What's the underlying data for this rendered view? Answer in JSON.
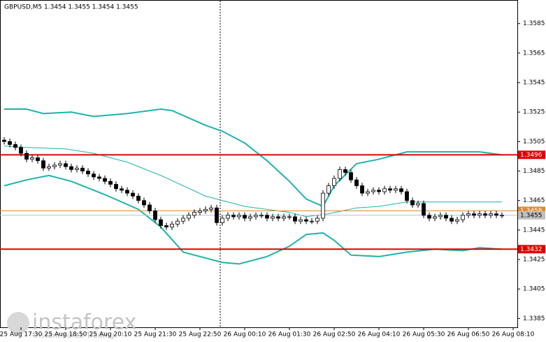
{
  "chart_data": {
    "type": "candlestick",
    "title": "GBPUSD,M5  1.3454 1.3455 1.3454 1.3455",
    "watermark": "instaforex",
    "watermark_subtitle": "Instant Forex Trading",
    "xlim": [
      -0.75,
      91.75
    ],
    "ylim": [
      1.3379,
      1.3601
    ],
    "yticks": [
      1.3585,
      1.3565,
      1.3545,
      1.3525,
      1.3505,
      1.3485,
      1.3465,
      1.3445,
      1.3425,
      1.3405,
      1.3385
    ],
    "xticks": [
      {
        "value": 3,
        "label": "25 Aug 17:30"
      },
      {
        "value": 11,
        "label": "25 Aug 18:50"
      },
      {
        "value": 19,
        "label": "25 Aug 20:10"
      },
      {
        "value": 27,
        "label": "25 Aug 21:30"
      },
      {
        "value": 35,
        "label": "25 Aug 22:50"
      },
      {
        "value": 43,
        "label": "26 Aug 00:10"
      },
      {
        "value": 51,
        "label": "26 Aug 01:30"
      },
      {
        "value": 59,
        "label": "26 Aug 02:50"
      },
      {
        "value": 67,
        "label": "26 Aug 04:10"
      },
      {
        "value": 75,
        "label": "26 Aug 05:30"
      },
      {
        "value": 83,
        "label": "26 Aug 06:50"
      },
      {
        "value": 91,
        "label": "26 Aug 08:10"
      }
    ],
    "candles": {
      "open": [
        1.3506,
        1.3505,
        1.3503,
        1.3501,
        1.3497,
        1.3493,
        1.3494,
        1.3492,
        1.3487,
        1.3488,
        1.3489,
        1.349,
        1.3488,
        1.3486,
        1.3487,
        1.3485,
        1.3483,
        1.3481,
        1.348,
        1.3478,
        1.3476,
        1.3473,
        1.3472,
        1.347,
        1.3468,
        1.3465,
        1.3462,
        1.3458,
        1.3452,
        1.3448,
        1.3447,
        1.3449,
        1.3451,
        1.3453,
        1.3455,
        1.3457,
        1.3458,
        1.3459,
        1.346,
        1.345,
        1.3453,
        1.3455,
        1.3454,
        1.3455,
        1.3453,
        1.3454,
        1.3455,
        1.3455,
        1.3453,
        1.3454,
        1.3453,
        1.3454,
        1.3454,
        1.3451,
        1.3452,
        1.3451,
        1.3451,
        1.3453,
        1.347,
        1.3475,
        1.348,
        1.3486,
        1.3484,
        1.3479,
        1.3475,
        1.347,
        1.3471,
        1.3472,
        1.3471,
        1.3473,
        1.3472,
        1.3473,
        1.3471,
        1.3465,
        1.3462,
        1.3463,
        1.3455,
        1.3453,
        1.3454,
        1.3455,
        1.3453,
        1.3451,
        1.3452,
        1.3455,
        1.3456,
        1.3455,
        1.3456,
        1.3455,
        1.3456,
        1.3455
      ],
      "high": [
        1.3508,
        1.3507,
        1.3505,
        1.3503,
        1.3499,
        1.3496,
        1.3496,
        1.3494,
        1.349,
        1.3491,
        1.3492,
        1.3492,
        1.349,
        1.3489,
        1.3489,
        1.3487,
        1.3485,
        1.3483,
        1.3482,
        1.348,
        1.3478,
        1.3475,
        1.3474,
        1.3472,
        1.347,
        1.3467,
        1.3464,
        1.346,
        1.3454,
        1.345,
        1.3451,
        1.3453,
        1.3455,
        1.3457,
        1.3459,
        1.346,
        1.3461,
        1.3462,
        1.3462,
        1.3455,
        1.3457,
        1.3457,
        1.3457,
        1.3457,
        1.3456,
        1.3457,
        1.3457,
        1.3457,
        1.3456,
        1.3456,
        1.3456,
        1.3456,
        1.3456,
        1.3454,
        1.3454,
        1.3453,
        1.3455,
        1.3472,
        1.3477,
        1.3482,
        1.3488,
        1.3488,
        1.3486,
        1.3481,
        1.3477,
        1.3473,
        1.3474,
        1.3474,
        1.3475,
        1.3475,
        1.3475,
        1.3475,
        1.3473,
        1.3467,
        1.3465,
        1.3465,
        1.3457,
        1.3456,
        1.3457,
        1.3457,
        1.3455,
        1.3454,
        1.3457,
        1.3458,
        1.3458,
        1.3458,
        1.3458,
        1.3458,
        1.3458,
        1.3457
      ],
      "low": [
        1.3503,
        1.3501,
        1.3499,
        1.3495,
        1.3491,
        1.3491,
        1.349,
        1.3485,
        1.3485,
        1.3486,
        1.3487,
        1.3486,
        1.3484,
        1.3484,
        1.3483,
        1.3481,
        1.3479,
        1.3478,
        1.3476,
        1.3474,
        1.3471,
        1.347,
        1.3468,
        1.3466,
        1.3463,
        1.346,
        1.3456,
        1.345,
        1.3446,
        1.3445,
        1.3445,
        1.3447,
        1.3449,
        1.3451,
        1.3453,
        1.3455,
        1.3456,
        1.3457,
        1.3448,
        1.3448,
        1.3451,
        1.3452,
        1.3452,
        1.3451,
        1.3451,
        1.3452,
        1.3453,
        1.3451,
        1.3451,
        1.3451,
        1.3451,
        1.3452,
        1.3449,
        1.3449,
        1.3449,
        1.3449,
        1.3449,
        1.3451,
        1.3468,
        1.3473,
        1.3478,
        1.3482,
        1.3477,
        1.3473,
        1.3468,
        1.3468,
        1.3469,
        1.3469,
        1.3469,
        1.347,
        1.347,
        1.3469,
        1.3463,
        1.346,
        1.346,
        1.3453,
        1.3451,
        1.3451,
        1.3452,
        1.3451,
        1.3449,
        1.3449,
        1.345,
        1.3453,
        1.3453,
        1.3453,
        1.3453,
        1.3453,
        1.3453,
        1.3453
      ],
      "close": [
        1.3505,
        1.3503,
        1.3501,
        1.3497,
        1.3493,
        1.3494,
        1.3492,
        1.3487,
        1.3488,
        1.3489,
        1.349,
        1.3488,
        1.3486,
        1.3487,
        1.3485,
        1.3483,
        1.3481,
        1.348,
        1.3478,
        1.3476,
        1.3473,
        1.3472,
        1.347,
        1.3468,
        1.3465,
        1.3462,
        1.3458,
        1.3452,
        1.3448,
        1.3447,
        1.3449,
        1.3451,
        1.3453,
        1.3455,
        1.3457,
        1.3458,
        1.3459,
        1.346,
        1.345,
        1.3453,
        1.3455,
        1.3454,
        1.3455,
        1.3453,
        1.3454,
        1.3455,
        1.3455,
        1.3453,
        1.3454,
        1.3453,
        1.3454,
        1.3454,
        1.3451,
        1.3452,
        1.3451,
        1.3451,
        1.3453,
        1.347,
        1.3475,
        1.348,
        1.3486,
        1.3484,
        1.3479,
        1.3475,
        1.347,
        1.3471,
        1.3472,
        1.3471,
        1.3473,
        1.3472,
        1.3473,
        1.3471,
        1.3465,
        1.3462,
        1.3463,
        1.3455,
        1.3453,
        1.3454,
        1.3455,
        1.3453,
        1.3451,
        1.3452,
        1.3455,
        1.3456,
        1.3455,
        1.3456,
        1.3455,
        1.3456,
        1.3455,
        1.3455
      ],
      "up_color": "#ffffff",
      "down_color": "#000000",
      "outline": "#000000"
    },
    "bands": [
      {
        "color": "#20b2aa",
        "width": 2,
        "x": [
          0,
          4,
          7,
          12,
          16,
          22,
          28,
          30,
          36,
          39,
          43,
          47,
          51,
          54,
          57,
          59,
          63,
          67,
          72,
          79,
          85,
          89
        ],
        "values": [
          1.3527,
          1.3527,
          1.3524,
          1.3525,
          1.3522,
          1.3524,
          1.3527,
          1.3526,
          1.3516,
          1.3512,
          1.3504,
          1.3492,
          1.3478,
          1.3466,
          1.3461,
          1.3475,
          1.349,
          1.3493,
          1.3498,
          1.3498,
          1.3498,
          1.3496
        ]
      },
      {
        "color": "#20b2aa",
        "width": 1,
        "x": [
          0,
          4,
          11,
          16,
          22,
          28,
          36,
          43,
          51,
          54,
          58,
          63,
          67,
          72,
          79,
          89
        ],
        "values": [
          1.3502,
          1.3501,
          1.35,
          1.3497,
          1.3491,
          1.3482,
          1.3468,
          1.3461,
          1.3457,
          1.3454,
          1.3456,
          1.346,
          1.3461,
          1.3464,
          1.3464,
          1.3464
        ]
      },
      {
        "color": "#20b2aa",
        "width": 2,
        "x": [
          0,
          4,
          8,
          12,
          18,
          24,
          28,
          32,
          36,
          39,
          42,
          47,
          51,
          54,
          57,
          59,
          62,
          67,
          72,
          77,
          82,
          85,
          89
        ],
        "values": [
          1.3475,
          1.3479,
          1.3482,
          1.3478,
          1.3469,
          1.3459,
          1.3447,
          1.343,
          1.3426,
          1.3423,
          1.3422,
          1.3427,
          1.3434,
          1.3442,
          1.3443,
          1.3438,
          1.3428,
          1.3427,
          1.343,
          1.3432,
          1.3431,
          1.3433,
          1.3432
        ]
      }
    ],
    "levels": [
      {
        "value": 1.3496,
        "color": "#e00000",
        "width": 2
      },
      {
        "value": 1.3432,
        "color": "#e00000",
        "width": 2
      },
      {
        "value": 1.3458,
        "color": "#e08a2e",
        "width": 1
      },
      {
        "value": 1.3455,
        "color": "#c0c0c0",
        "width": 1
      }
    ]
  }
}
